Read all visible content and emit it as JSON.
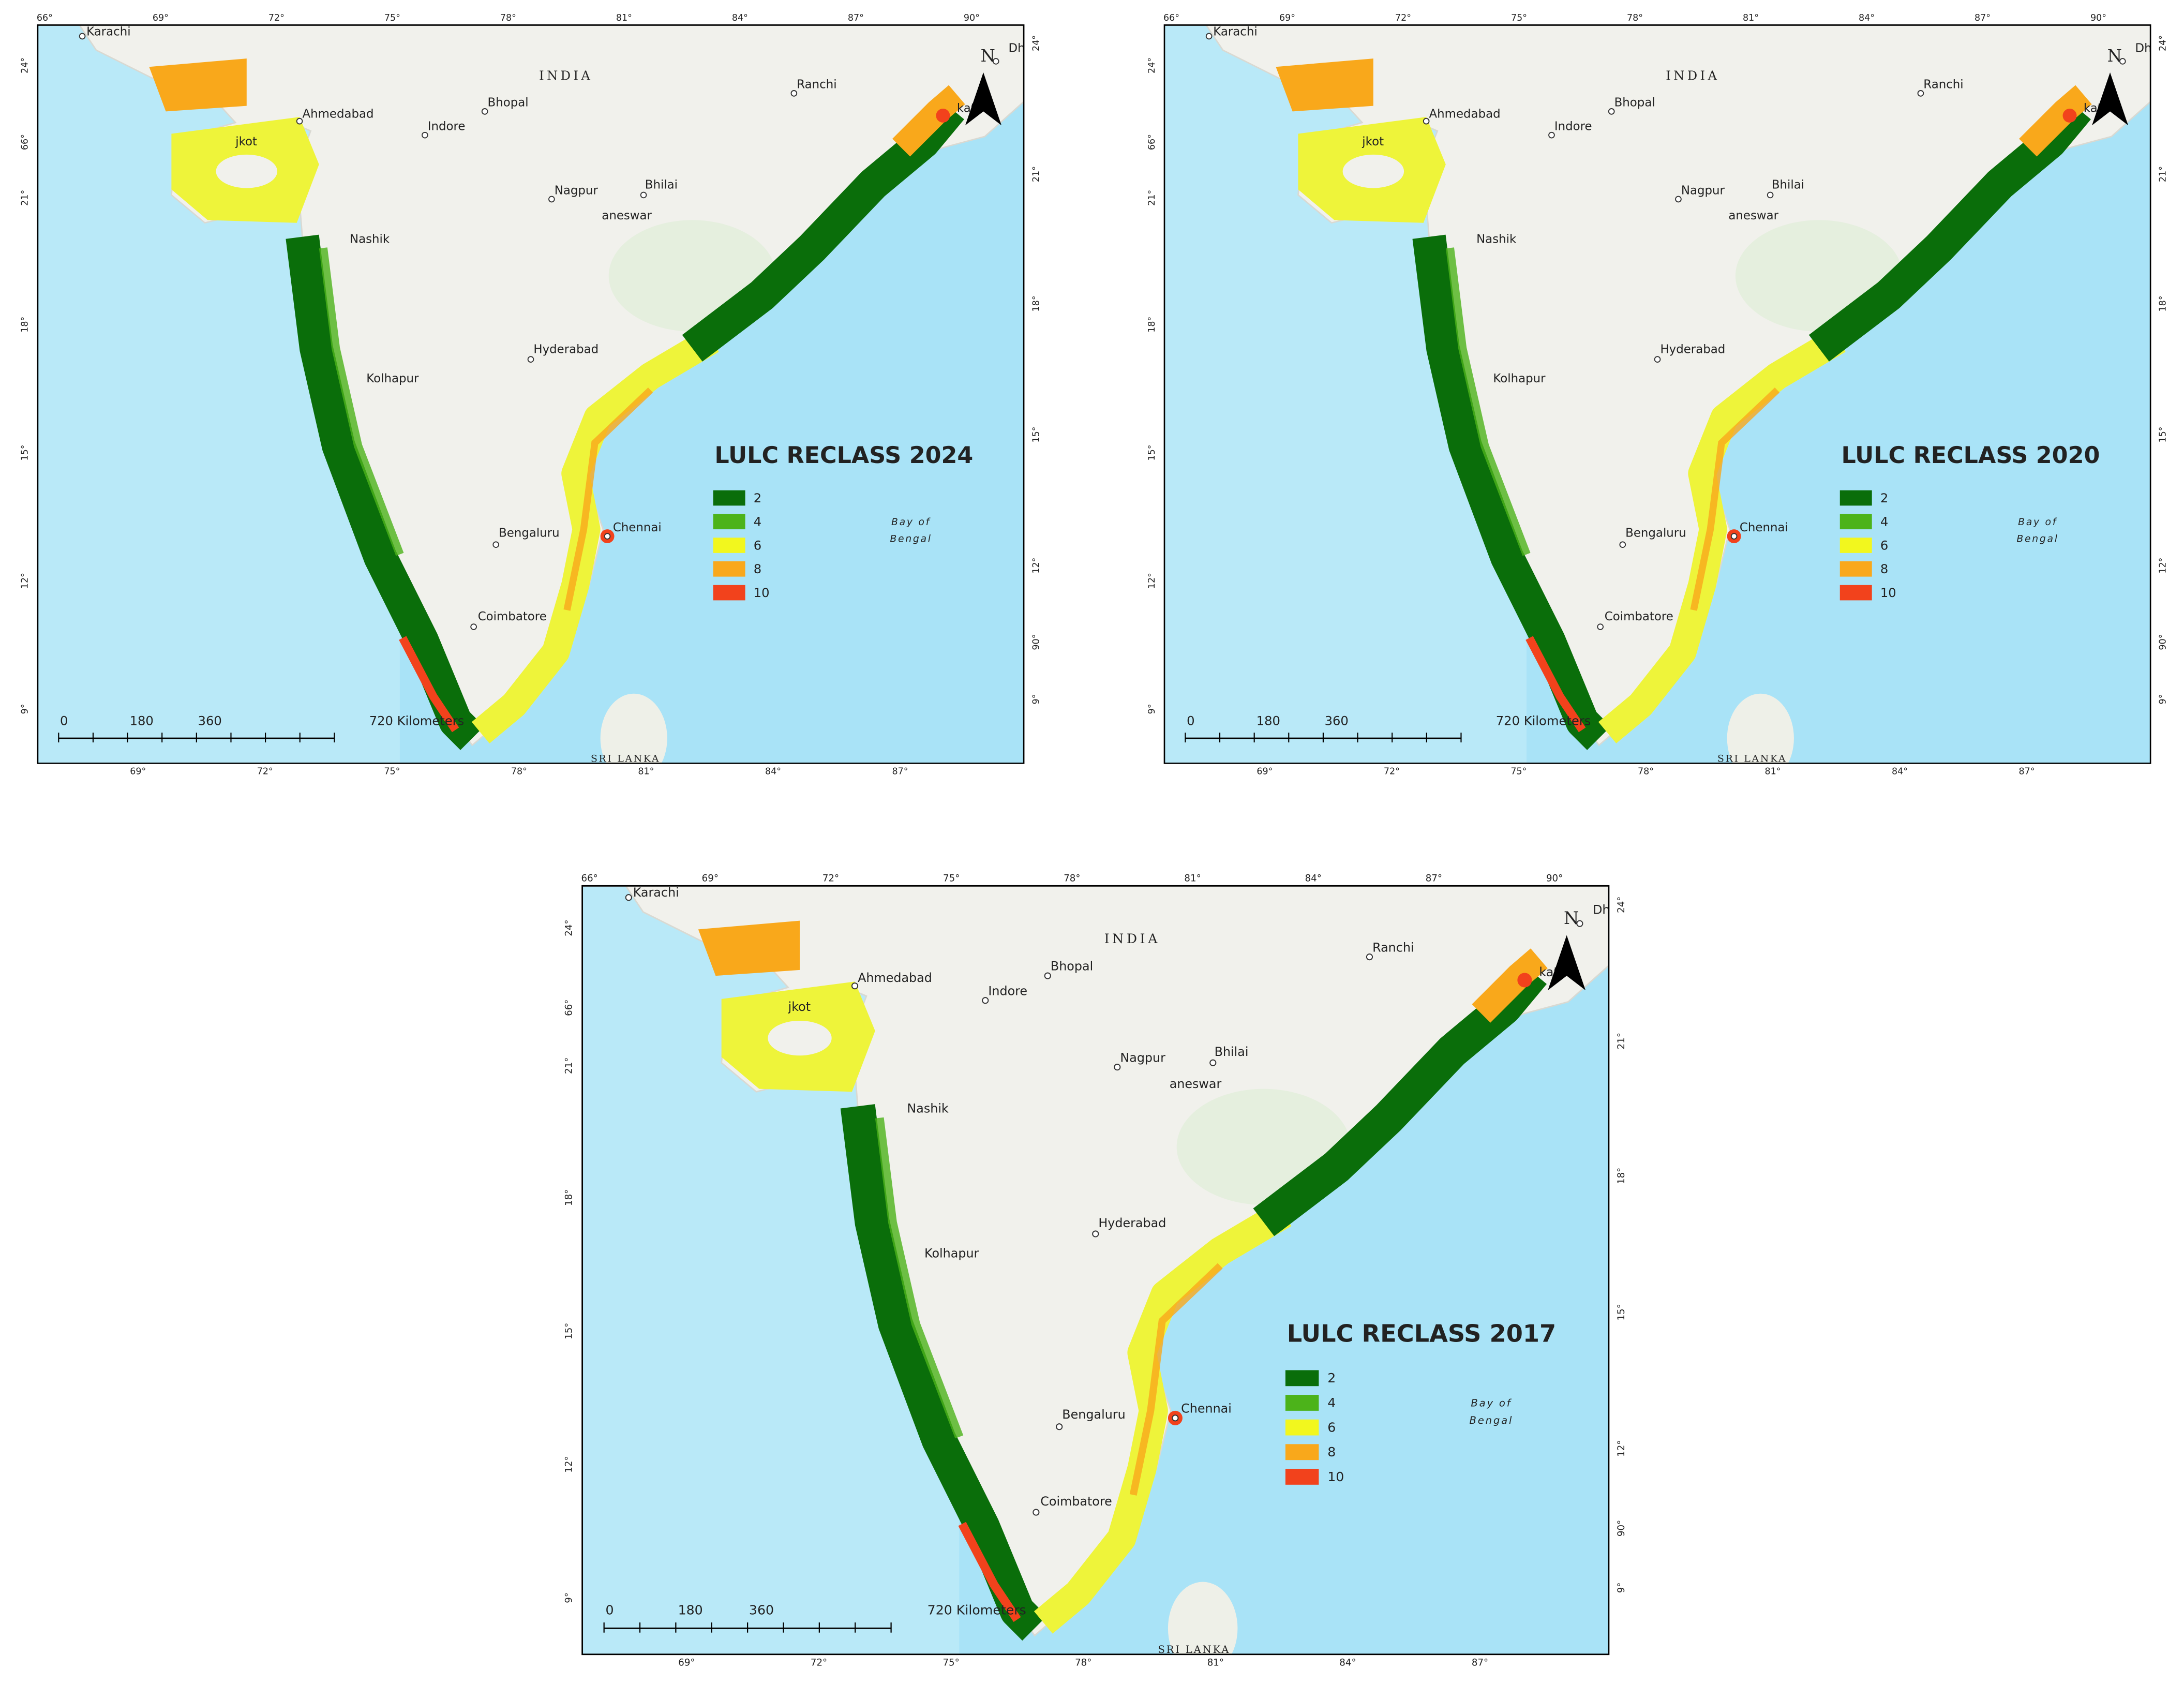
{
  "maps": [
    {
      "title": "LULC RECLASS 2024"
    },
    {
      "title": "LULC RECLASS 2020"
    },
    {
      "title": "LULC RECLASS 2017"
    }
  ],
  "legend": [
    {
      "label": "2",
      "color": "#0a6e0a"
    },
    {
      "label": "4",
      "color": "#4cb31a"
    },
    {
      "label": "6",
      "color": "#f2f71e"
    },
    {
      "label": "8",
      "color": "#f9a81b"
    },
    {
      "label": "10",
      "color": "#f2421c"
    }
  ],
  "cities": [
    "Karachi",
    "Ahmedabad",
    "jkot",
    "Indore",
    "Bhopal",
    "Ranchi",
    "kata",
    "Dha",
    "Nagpur",
    "Bhilai",
    "aneswar",
    "Nashik",
    "Hyderabad",
    "Kolhapur",
    "Bengaluru",
    "Chennai",
    "Coimbatore"
  ],
  "labels": {
    "country": "INDIA",
    "sea": [
      "Bay of",
      "Bengal"
    ],
    "island": "SRI LANKA",
    "north": "N"
  },
  "scale_bar": [
    "0",
    "180",
    "360",
    "720 Kilometers"
  ],
  "ticks": {
    "top": [
      "66°",
      "69°",
      "72°",
      "75°",
      "78°",
      "81°",
      "84°",
      "87°",
      "90°"
    ],
    "bottom": [
      "69°",
      "72°",
      "75°",
      "78°",
      "81°",
      "84°",
      "87°"
    ],
    "left": [
      "24°",
      "66°",
      "21°",
      "18°",
      "15°",
      "12°",
      "9°"
    ],
    "right": [
      "24°",
      "21°",
      "18°",
      "15°",
      "12°",
      "90°",
      "9°"
    ]
  }
}
